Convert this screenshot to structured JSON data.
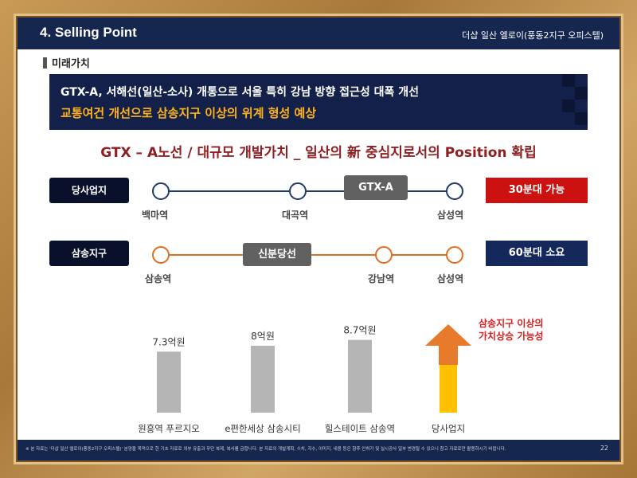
{
  "header": {
    "title": "4. Selling Point",
    "project": "더샵 일산 엘로이(풍동2지구 오피스텔)"
  },
  "section": {
    "label": "미래가치"
  },
  "banner": {
    "line1": "GTX-A, 서해선(일산-소사) 개통으로 서울 특히 강남 방향 접근성 대폭 개선",
    "line2": "교통여건 개선으로 삼송지구 이상의 위계 형성 예상"
  },
  "headline": "GTX – A노선 / 대규모 개발가치 _ 일산의 新 중심지로서의 Position 확립",
  "routes": [
    {
      "label": "당사업지",
      "line_color": "#1d3a6b",
      "pill": "GTX-A",
      "stations": [
        "백마역",
        "대곡역",
        "삼성역"
      ],
      "time": "30분대 가능",
      "time_color": "#cc1111"
    },
    {
      "label": "삼송지구",
      "line_color": "#e06e1f",
      "pill": "신분당선",
      "stations": [
        "삼송역",
        "강남역",
        "삼성역"
      ],
      "time": "60분대 소요",
      "time_color": "#14285c"
    }
  ],
  "chart_data": {
    "type": "bar",
    "categories": [
      "원흥역 푸르지오",
      "e편한세상 삼송시티",
      "힐스테이트 삼송역",
      "당사업지"
    ],
    "values": [
      7.3,
      8,
      8.7,
      null
    ],
    "value_labels": [
      "7.3억원",
      "8억원",
      "8.7억원",
      ""
    ],
    "colors": {
      "bar": "#b5b5b5",
      "arrow": "#e87a2c",
      "highlight": "#ffc000"
    }
  },
  "rise_note": {
    "line1": "삼송지구 이상의",
    "line2": "가치상승 가능성"
  },
  "footer": {
    "note": "※ 본 자료는 '더샵 일산 엘로이(풍동2지구 오피스텔)' 분양을 목적으로 한 기초 자료로 외부 유출과 무단 복제, 복사를 금합니다. 본 자료의 개발계획, 수치, 지수, 이미지, 내용 등은 향후 인허가 및 실시공사 일부 변경될 수 있으니 참고 자료로만 활용하시기 바랍니다.",
    "page": "22"
  }
}
